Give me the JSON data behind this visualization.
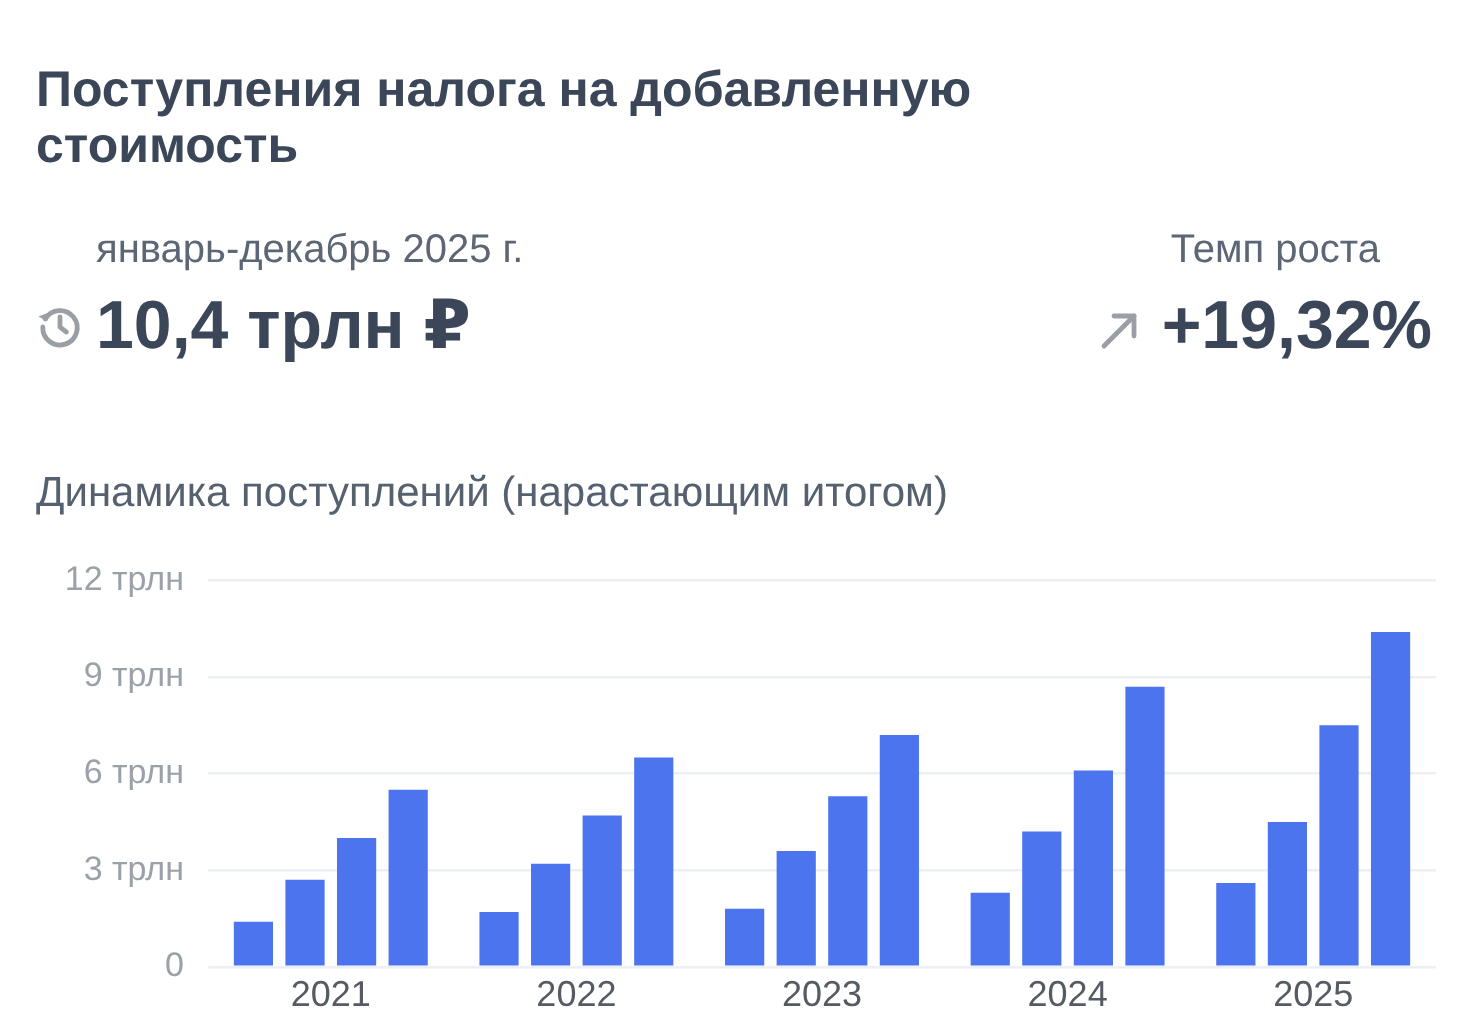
{
  "chart_data": {
    "type": "bar",
    "title": "Поступления налога на добавленную стоимость",
    "subtitle": "Динамика поступлений (нарастающим итогом)",
    "annotations": [
      "январь-декабрь 2025 г.",
      "10,4 трлн ₽",
      "Темп роста",
      "+19,32%"
    ],
    "categories": [
      "2021",
      "2022",
      "2023",
      "2024",
      "2025"
    ],
    "series": [
      {
        "color": "#4b74ee",
        "values": [
          1.4,
          1.7,
          1.8,
          2.3,
          2.6
        ]
      },
      {
        "color": "#4b74ee",
        "values": [
          2.7,
          3.2,
          3.6,
          4.2,
          4.5
        ]
      },
      {
        "color": "#4b74ee",
        "values": [
          4.0,
          4.7,
          5.3,
          6.1,
          7.5
        ]
      },
      {
        "color": "#4b74ee",
        "values": [
          5.5,
          6.5,
          7.2,
          8.7,
          10.4
        ]
      }
    ],
    "ylim": [
      0,
      12
    ],
    "yticks": [
      0,
      {
        "value": 3,
        "label": "3 трлн"
      },
      {
        "value": 6,
        "label": "6 трлн"
      },
      {
        "value": 9,
        "label": "9 трлн"
      },
      {
        "value": 12,
        "label": "12 трлн"
      }
    ],
    "grid": "y"
  }
}
